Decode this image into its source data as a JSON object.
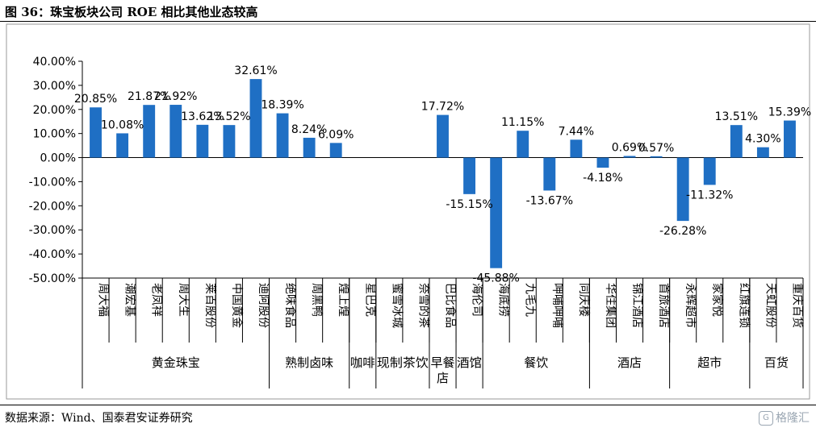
{
  "header": {
    "title": "图 36：珠宝板块公司 ROE 相比其他业态较高"
  },
  "footer": {
    "source": "数据来源：Wind、国泰君安证券研究"
  },
  "watermark": {
    "text": "格隆汇",
    "logo_glyph": "G"
  },
  "chart_data": {
    "type": "bar",
    "bar_color": "#1f6fc4",
    "ylim": [
      -50,
      40
    ],
    "ytick_step": 10,
    "yticks": [
      "40.00%",
      "30.00%",
      "20.00%",
      "10.00%",
      "0.00%",
      "-10.00%",
      "-20.00%",
      "-30.00%",
      "-40.00%",
      "-50.00%"
    ],
    "categories": [
      "周大福",
      "潮宏基",
      "老凤祥",
      "周大生",
      "莱百股份",
      "中国黄金",
      "迪阿股份",
      "绝味食品",
      "周黑鸭",
      "煌上煌",
      "星巴克",
      "蜜雪冰城",
      "奈雪的茶",
      "巴比食品",
      "海伦司",
      "海底捞",
      "九毛九",
      "呷哺呷哺",
      "同庆楼",
      "华住集团",
      "锦江酒店",
      "首旅酒店",
      "永辉超市",
      "家家悦",
      "红旗连锁",
      "天虹股份",
      "重庆百货"
    ],
    "values": [
      20.85,
      10.08,
      21.87,
      21.92,
      13.62,
      13.52,
      32.61,
      18.39,
      8.24,
      6.09,
      null,
      null,
      null,
      17.72,
      -15.15,
      -45.88,
      11.15,
      -13.67,
      7.44,
      -4.18,
      0.69,
      0.57,
      -26.28,
      -11.32,
      13.51,
      4.3,
      15.39
    ],
    "data_labels": [
      "20.85%",
      "10.08%",
      "21.87%",
      "21.92%",
      "13.62%",
      "13.52%",
      "32.61%",
      "18.39%",
      "8.24%",
      "6.09%",
      "",
      "",
      "",
      "17.72%",
      "-15.15%",
      "-45.88%",
      "11.15%",
      "-13.67%",
      "7.44%",
      "-4.18%",
      "0.69%",
      "0.57%",
      "-26.28%",
      "-11.32%",
      "13.51%",
      "4.30%",
      "15.39%"
    ],
    "groups": [
      {
        "label": "黄金珠宝",
        "count": 7
      },
      {
        "label": "熟制卤味",
        "count": 3
      },
      {
        "label": "咖啡",
        "count": 1
      },
      {
        "label": "现制茶饮",
        "count": 2
      },
      {
        "label": "早餐店",
        "count": 1
      },
      {
        "label": "酒馆",
        "count": 1
      },
      {
        "label": "餐饮",
        "count": 4
      },
      {
        "label": "酒店",
        "count": 3
      },
      {
        "label": "超市",
        "count": 3
      },
      {
        "label": "百货",
        "count": 2
      }
    ]
  }
}
